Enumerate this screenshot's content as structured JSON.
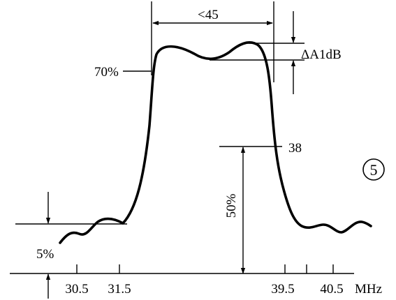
{
  "labels": {
    "bandwidth": "<45",
    "ripple": "ΔA1dB",
    "level_70": "70%",
    "level_38": "38",
    "level_50": "50%",
    "level_5": "5%",
    "curve_number": "5"
  },
  "axis": {
    "ticks": [
      "30.5",
      "31.5",
      "39.5",
      "40.5"
    ],
    "unit": "MHz"
  }
}
